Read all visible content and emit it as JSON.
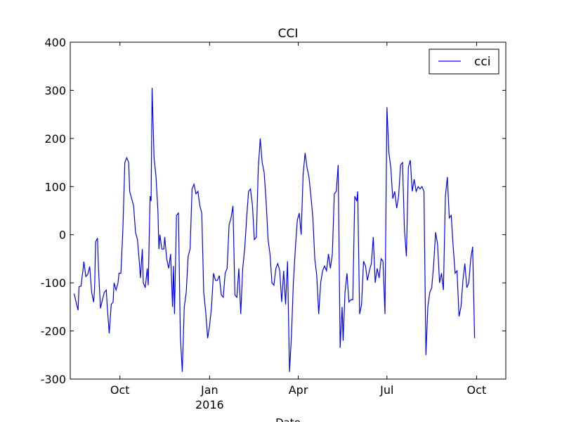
{
  "chart_data": {
    "type": "line",
    "title": "CCI",
    "xlabel": "Date",
    "ylabel": "",
    "ylim": [
      -300,
      400
    ],
    "xlim": [
      "2015-08-11",
      "2016-10-31"
    ],
    "yticks": [
      -300,
      -200,
      -100,
      0,
      100,
      200,
      300,
      400
    ],
    "xticks": [
      {
        "date": "2015-10-01",
        "label": "Oct"
      },
      {
        "date": "2016-01-01",
        "label": "Jan",
        "sublabel": "2016"
      },
      {
        "date": "2016-04-01",
        "label": "Apr"
      },
      {
        "date": "2016-07-01",
        "label": "Jul"
      },
      {
        "date": "2016-10-01",
        "label": "Oct"
      }
    ],
    "legend": {
      "position": "top-right",
      "entries": [
        "cci"
      ]
    },
    "grid": false,
    "series": [
      {
        "name": "cci",
        "color": "#0000ff",
        "points": [
          [
            "2015-08-15",
            -122
          ],
          [
            "2015-08-17",
            -140
          ],
          [
            "2015-08-19",
            -157
          ],
          [
            "2015-08-20",
            -108
          ],
          [
            "2015-08-22",
            -107
          ],
          [
            "2015-08-24",
            -75
          ],
          [
            "2015-08-25",
            -56
          ],
          [
            "2015-08-27",
            -87
          ],
          [
            "2015-08-29",
            -82
          ],
          [
            "2015-08-31",
            -66
          ],
          [
            "2015-09-02",
            -120
          ],
          [
            "2015-09-04",
            -140
          ],
          [
            "2015-09-05",
            -110
          ],
          [
            "2015-09-06",
            -15
          ],
          [
            "2015-09-08",
            -7
          ],
          [
            "2015-09-09",
            -70
          ],
          [
            "2015-09-11",
            -153
          ],
          [
            "2015-09-13",
            -135
          ],
          [
            "2015-09-15",
            -120
          ],
          [
            "2015-09-17",
            -115
          ],
          [
            "2015-09-18",
            -150
          ],
          [
            "2015-09-20",
            -205
          ],
          [
            "2015-09-22",
            -145
          ],
          [
            "2015-09-24",
            -140
          ],
          [
            "2015-09-25",
            -100
          ],
          [
            "2015-09-27",
            -115
          ],
          [
            "2015-09-29",
            -100
          ],
          [
            "2015-09-30",
            -80
          ],
          [
            "2015-10-02",
            -80
          ],
          [
            "2015-10-04",
            10
          ],
          [
            "2015-10-06",
            150
          ],
          [
            "2015-10-08",
            160
          ],
          [
            "2015-10-10",
            150
          ],
          [
            "2015-10-11",
            90
          ],
          [
            "2015-10-13",
            75
          ],
          [
            "2015-10-15",
            60
          ],
          [
            "2015-10-17",
            5
          ],
          [
            "2015-10-19",
            -10
          ],
          [
            "2015-10-21",
            -60
          ],
          [
            "2015-10-22",
            -90
          ],
          [
            "2015-10-24",
            -30
          ],
          [
            "2015-10-25",
            -100
          ],
          [
            "2015-10-27",
            -110
          ],
          [
            "2015-10-29",
            -70
          ],
          [
            "2015-10-30",
            -105
          ],
          [
            "2015-11-01",
            80
          ],
          [
            "2015-11-02",
            70
          ],
          [
            "2015-11-03",
            305
          ],
          [
            "2015-11-05",
            160
          ],
          [
            "2015-11-07",
            120
          ],
          [
            "2015-11-09",
            50
          ],
          [
            "2015-11-10",
            -30
          ],
          [
            "2015-11-11",
            0
          ],
          [
            "2015-11-13",
            -30
          ],
          [
            "2015-11-15",
            -30
          ],
          [
            "2015-11-16",
            -5
          ],
          [
            "2015-11-18",
            -50
          ],
          [
            "2015-11-20",
            -70
          ],
          [
            "2015-11-22",
            -40
          ],
          [
            "2015-11-24",
            -150
          ],
          [
            "2015-11-25",
            -65
          ],
          [
            "2015-11-26",
            -165
          ],
          [
            "2015-11-28",
            40
          ],
          [
            "2015-11-30",
            45
          ],
          [
            "2015-12-02",
            -210
          ],
          [
            "2015-12-04",
            -285
          ],
          [
            "2015-12-06",
            -150
          ],
          [
            "2015-12-08",
            -120
          ],
          [
            "2015-12-10",
            -45
          ],
          [
            "2015-12-12",
            -30
          ],
          [
            "2015-12-14",
            95
          ],
          [
            "2015-12-16",
            105
          ],
          [
            "2015-12-18",
            85
          ],
          [
            "2015-12-20",
            90
          ],
          [
            "2015-12-22",
            60
          ],
          [
            "2015-12-24",
            45
          ],
          [
            "2015-12-26",
            -120
          ],
          [
            "2015-12-28",
            -160
          ],
          [
            "2015-12-30",
            -215
          ],
          [
            "2016-01-01",
            -190
          ],
          [
            "2016-01-03",
            -150
          ],
          [
            "2016-01-05",
            -80
          ],
          [
            "2016-01-07",
            -95
          ],
          [
            "2016-01-09",
            -95
          ],
          [
            "2016-01-11",
            -85
          ],
          [
            "2016-01-13",
            -125
          ],
          [
            "2016-01-15",
            -130
          ],
          [
            "2016-01-17",
            -80
          ],
          [
            "2016-01-19",
            -70
          ],
          [
            "2016-01-21",
            20
          ],
          [
            "2016-01-23",
            35
          ],
          [
            "2016-01-25",
            60
          ],
          [
            "2016-01-27",
            -125
          ],
          [
            "2016-01-29",
            -130
          ],
          [
            "2016-01-31",
            -70
          ],
          [
            "2016-02-02",
            -165
          ],
          [
            "2016-02-04",
            -70
          ],
          [
            "2016-02-06",
            -30
          ],
          [
            "2016-02-08",
            35
          ],
          [
            "2016-02-10",
            90
          ],
          [
            "2016-02-12",
            95
          ],
          [
            "2016-02-14",
            60
          ],
          [
            "2016-02-16",
            -10
          ],
          [
            "2016-02-18",
            -5
          ],
          [
            "2016-02-20",
            140
          ],
          [
            "2016-02-22",
            200
          ],
          [
            "2016-02-24",
            150
          ],
          [
            "2016-02-26",
            130
          ],
          [
            "2016-02-28",
            70
          ],
          [
            "2016-03-01",
            -10
          ],
          [
            "2016-03-03",
            -40
          ],
          [
            "2016-03-05",
            -100
          ],
          [
            "2016-03-07",
            -105
          ],
          [
            "2016-03-09",
            -70
          ],
          [
            "2016-03-11",
            -60
          ],
          [
            "2016-03-13",
            -75
          ],
          [
            "2016-03-15",
            -140
          ],
          [
            "2016-03-17",
            -75
          ],
          [
            "2016-03-19",
            -145
          ],
          [
            "2016-03-21",
            -55
          ],
          [
            "2016-03-23",
            -285
          ],
          [
            "2016-03-25",
            -210
          ],
          [
            "2016-03-27",
            -100
          ],
          [
            "2016-03-29",
            -30
          ],
          [
            "2016-03-31",
            30
          ],
          [
            "2016-04-02",
            45
          ],
          [
            "2016-04-04",
            0
          ],
          [
            "2016-04-06",
            125
          ],
          [
            "2016-04-08",
            170
          ],
          [
            "2016-04-10",
            140
          ],
          [
            "2016-04-12",
            120
          ],
          [
            "2016-04-14",
            80
          ],
          [
            "2016-04-16",
            35
          ],
          [
            "2016-04-18",
            -50
          ],
          [
            "2016-04-20",
            -85
          ],
          [
            "2016-04-22",
            -165
          ],
          [
            "2016-04-24",
            -100
          ],
          [
            "2016-04-26",
            -75
          ],
          [
            "2016-04-28",
            -65
          ],
          [
            "2016-04-30",
            -75
          ],
          [
            "2016-05-02",
            -40
          ],
          [
            "2016-05-04",
            -70
          ],
          [
            "2016-05-06",
            -40
          ],
          [
            "2016-05-08",
            85
          ],
          [
            "2016-05-10",
            90
          ],
          [
            "2016-05-12",
            145
          ],
          [
            "2016-05-14",
            -235
          ],
          [
            "2016-05-16",
            -150
          ],
          [
            "2016-05-17",
            -220
          ],
          [
            "2016-05-19",
            -120
          ],
          [
            "2016-05-21",
            -80
          ],
          [
            "2016-05-23",
            -140
          ],
          [
            "2016-05-25",
            -135
          ],
          [
            "2016-05-27",
            -135
          ],
          [
            "2016-05-29",
            80
          ],
          [
            "2016-05-31",
            70
          ],
          [
            "2016-06-01",
            90
          ],
          [
            "2016-06-03",
            -165
          ],
          [
            "2016-06-05",
            -145
          ],
          [
            "2016-06-07",
            -55
          ],
          [
            "2016-06-09",
            -65
          ],
          [
            "2016-06-11",
            -95
          ],
          [
            "2016-06-13",
            -75
          ],
          [
            "2016-06-15",
            -60
          ],
          [
            "2016-06-17",
            -5
          ],
          [
            "2016-06-19",
            -100
          ],
          [
            "2016-06-21",
            -70
          ],
          [
            "2016-06-23",
            -90
          ],
          [
            "2016-06-25",
            -50
          ],
          [
            "2016-06-27",
            -55
          ],
          [
            "2016-06-29",
            -165
          ],
          [
            "2016-07-01",
            265
          ],
          [
            "2016-07-03",
            170
          ],
          [
            "2016-07-05",
            140
          ],
          [
            "2016-07-07",
            75
          ],
          [
            "2016-07-09",
            90
          ],
          [
            "2016-07-11",
            55
          ],
          [
            "2016-07-13",
            80
          ],
          [
            "2016-07-15",
            145
          ],
          [
            "2016-07-17",
            150
          ],
          [
            "2016-07-19",
            10
          ],
          [
            "2016-07-21",
            -45
          ],
          [
            "2016-07-23",
            140
          ],
          [
            "2016-07-25",
            155
          ],
          [
            "2016-07-27",
            90
          ],
          [
            "2016-07-29",
            115
          ],
          [
            "2016-07-31",
            90
          ],
          [
            "2016-08-02",
            100
          ],
          [
            "2016-08-04",
            95
          ],
          [
            "2016-08-06",
            100
          ],
          [
            "2016-08-08",
            90
          ],
          [
            "2016-08-10",
            -250
          ],
          [
            "2016-08-12",
            -150
          ],
          [
            "2016-08-14",
            -120
          ],
          [
            "2016-08-16",
            -110
          ],
          [
            "2016-08-18",
            -60
          ],
          [
            "2016-08-20",
            5
          ],
          [
            "2016-08-22",
            -20
          ],
          [
            "2016-08-24",
            -100
          ],
          [
            "2016-08-26",
            -80
          ],
          [
            "2016-08-28",
            -115
          ],
          [
            "2016-08-30",
            80
          ],
          [
            "2016-09-01",
            120
          ],
          [
            "2016-09-03",
            35
          ],
          [
            "2016-09-05",
            40
          ],
          [
            "2016-09-07",
            -25
          ],
          [
            "2016-09-09",
            -80
          ],
          [
            "2016-09-11",
            -75
          ],
          [
            "2016-09-13",
            -170
          ],
          [
            "2016-09-15",
            -150
          ],
          [
            "2016-09-17",
            -95
          ],
          [
            "2016-09-19",
            -60
          ],
          [
            "2016-09-21",
            -110
          ],
          [
            "2016-09-23",
            -100
          ],
          [
            "2016-09-25",
            -50
          ],
          [
            "2016-09-27",
            -25
          ],
          [
            "2016-09-29",
            -215
          ]
        ]
      }
    ]
  }
}
